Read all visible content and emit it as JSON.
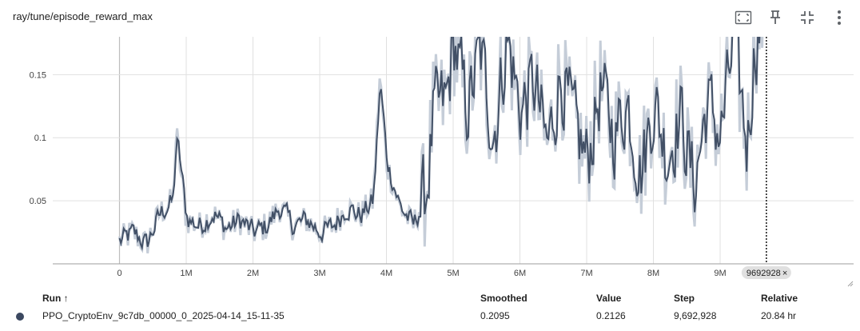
{
  "card": {
    "title": "ray/tune/episode_reward_max"
  },
  "toolbar": {
    "fit_domain_icon": "fit-domain-icon",
    "pin_icon": "pin-icon",
    "fullscreen_icon": "fullscreen-icon",
    "more_icon": "more-vert-icon"
  },
  "colors": {
    "series": "#425066",
    "raw_series": "#c5cdd8",
    "grid": "#e0e0e0",
    "run_dot": "#3b4860"
  },
  "hover": {
    "step_label": "9692928",
    "close_glyph": "×"
  },
  "table": {
    "headers": {
      "run": "Run ↑",
      "smoothed": "Smoothed",
      "value": "Value",
      "step": "Step",
      "relative": "Relative"
    },
    "rows": [
      {
        "run": "PPO_CryptoEnv_9c7db_00000_0_2025-04-14_15-11-35",
        "smoothed": "0.2095",
        "value": "0.2126",
        "step": "9,692,928",
        "relative": "20.84 hr"
      }
    ]
  },
  "chart_data": {
    "type": "line",
    "title": "ray/tune/episode_reward_max",
    "xlabel": "",
    "ylabel": "",
    "x_ticks": [
      "0",
      "1M",
      "2M",
      "3M",
      "4M",
      "5M",
      "6M",
      "7M",
      "8M",
      "9M"
    ],
    "y_ticks": [
      "0.05",
      "0.1",
      "0.15"
    ],
    "xlim": [
      -1000000,
      11000000
    ],
    "ylim": [
      0,
      0.18
    ],
    "grid": true,
    "legend": "none",
    "series": [
      {
        "x": [
          0,
          200000,
          400000,
          600000,
          800000,
          850000,
          1000000,
          1200000,
          1400000,
          1600000,
          1800000,
          2000000,
          2200000,
          2400000,
          2600000,
          2800000,
          3000000,
          3200000,
          3400000,
          3600000,
          3800000,
          3900000,
          4000000,
          4200000,
          4400000,
          4600000,
          4700000,
          4900000,
          5000000,
          5200000,
          5400000,
          5600000,
          5800000,
          6000000,
          6200000,
          6400000,
          6600000,
          6800000,
          7000000,
          7200000,
          7400000,
          7600000,
          7800000,
          8000000,
          8200000,
          8400000,
          8600000,
          8800000,
          9000000,
          9200000,
          9400000,
          9500000,
          9692928
        ],
        "values": [
          0.018,
          0.025,
          0.015,
          0.04,
          0.05,
          0.105,
          0.035,
          0.03,
          0.04,
          0.028,
          0.035,
          0.025,
          0.03,
          0.045,
          0.03,
          0.035,
          0.025,
          0.03,
          0.045,
          0.038,
          0.05,
          0.148,
          0.08,
          0.045,
          0.03,
          0.06,
          0.12,
          0.13,
          0.18,
          0.12,
          0.17,
          0.1,
          0.18,
          0.12,
          0.145,
          0.09,
          0.15,
          0.11,
          0.08,
          0.14,
          0.1,
          0.13,
          0.07,
          0.13,
          0.085,
          0.12,
          0.06,
          0.13,
          0.1,
          0.18,
          0.09,
          0.17,
          0.21
        ]
      }
    ]
  }
}
